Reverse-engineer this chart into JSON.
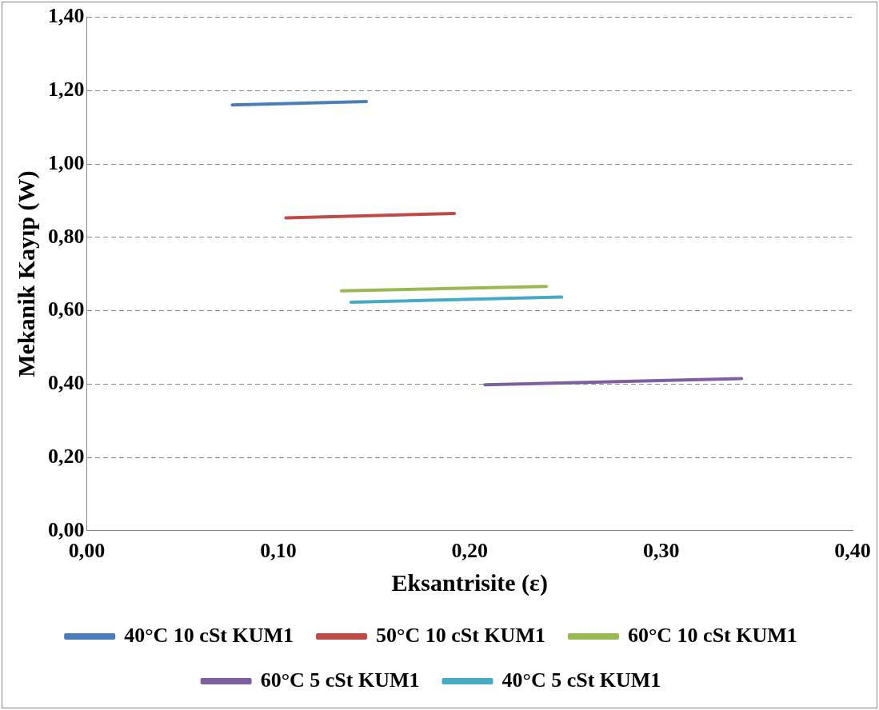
{
  "chart_data": {
    "type": "line",
    "xlabel": "Eksantrisite (ε)",
    "ylabel": "Mekanik Kayıp (W)",
    "xlim": [
      0,
      0.4
    ],
    "xticks": [
      {
        "value": 0,
        "label": "0,00"
      },
      {
        "value": 0.1,
        "label": "0,10"
      },
      {
        "value": 0.2,
        "label": "0,20"
      },
      {
        "value": 0.3,
        "label": "0,30"
      },
      {
        "value": 0.4,
        "label": "0,40"
      }
    ],
    "ylim": [
      0,
      1.4
    ],
    "yticks": [
      {
        "value": 0,
        "label": "0,00"
      },
      {
        "value": 0.2,
        "label": "0,20"
      },
      {
        "value": 0.4,
        "label": "0,40"
      },
      {
        "value": 0.6,
        "label": "0,60"
      },
      {
        "value": 0.8,
        "label": "0,80"
      },
      {
        "value": 1,
        "label": "1,00"
      },
      {
        "value": 1.2,
        "label": "1,20"
      },
      {
        "value": 1.4,
        "label": "1,40"
      }
    ],
    "grid": "y",
    "legend": "bottom",
    "marker": "none",
    "line_style": "solid",
    "series": [
      {
        "name": "40°C 10 cSt KUM1",
        "color": "#4a7ebb",
        "x": [
          0.076,
          0.146
        ],
        "values": [
          1.161,
          1.17
        ]
      },
      {
        "name": "50°C 10 cSt KUM1",
        "color": "#be4b48",
        "x": [
          0.104,
          0.192
        ],
        "values": [
          0.853,
          0.865
        ]
      },
      {
        "name": "60°C 10 cSt KUM1",
        "color": "#98b954",
        "x": [
          0.133,
          0.24
        ],
        "values": [
          0.654,
          0.666
        ]
      },
      {
        "name": "60°C 5 cSt KUM1",
        "color": "#7d60a0",
        "x": [
          0.208,
          0.342
        ],
        "values": [
          0.398,
          0.415
        ]
      },
      {
        "name": "40°C 5 cSt KUM1",
        "color": "#46aac5",
        "x": [
          0.138,
          0.248
        ],
        "values": [
          0.623,
          0.637
        ]
      }
    ]
  }
}
